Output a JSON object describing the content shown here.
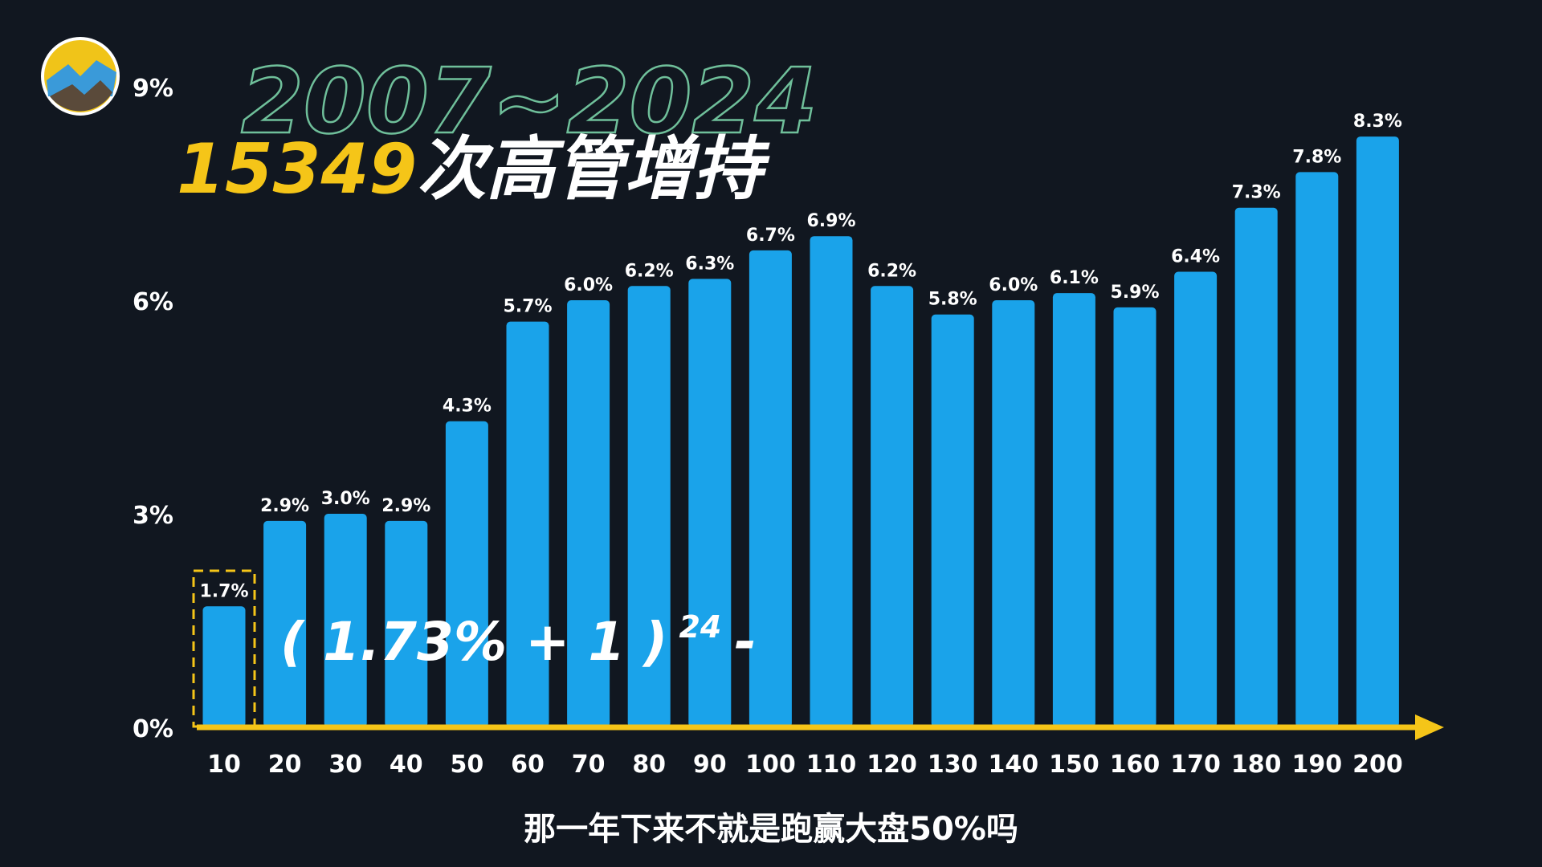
{
  "chart_data": {
    "type": "bar",
    "title": "2007~2024",
    "headline_number": "15349",
    "headline_text": "次高管增持",
    "categories": [
      "10",
      "20",
      "30",
      "40",
      "50",
      "60",
      "70",
      "80",
      "90",
      "100",
      "110",
      "120",
      "130",
      "140",
      "150",
      "160",
      "170",
      "180",
      "190",
      "200"
    ],
    "values": [
      1.7,
      2.9,
      3.0,
      2.9,
      4.3,
      5.7,
      6.0,
      6.2,
      6.3,
      6.7,
      6.9,
      6.2,
      5.8,
      6.0,
      6.1,
      5.9,
      6.4,
      7.3,
      7.8,
      8.3
    ],
    "value_labels": [
      "1.7%",
      "2.9%",
      "3.0%",
      "2.9%",
      "4.3%",
      "5.7%",
      "6.0%",
      "6.2%",
      "6.3%",
      "6.7%",
      "6.9%",
      "6.2%",
      "5.8%",
      "6.0%",
      "6.1%",
      "5.9%",
      "6.4%",
      "7.3%",
      "7.8%",
      "8.3%"
    ],
    "color": "#1aa3ea",
    "ylim": [
      0,
      9
    ],
    "yticks": [
      {
        "value": 0,
        "label": "0%"
      },
      {
        "value": 3,
        "label": "3%"
      },
      {
        "value": 6,
        "label": "6%"
      },
      {
        "value": 9,
        "label": "9%"
      }
    ],
    "annotation": {
      "base": "( 1.73% + 1 )",
      "exponent": "24",
      "tail": "-"
    },
    "caption": "那一年下来不就是跑赢大盘50%吗"
  }
}
